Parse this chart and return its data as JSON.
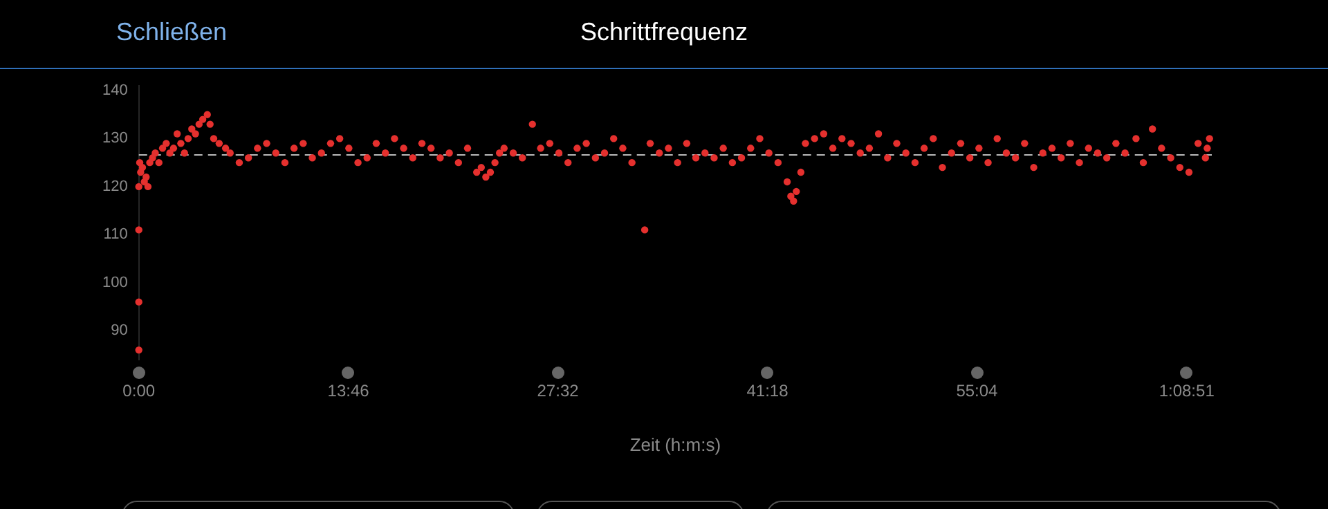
{
  "chart_data": {
    "type": "scatter",
    "title": "Schrittfrequenz",
    "xlabel": "Zeit (h:m:s)",
    "annotations": [
      "Schließen"
    ],
    "x": [
      0,
      0,
      0,
      0,
      0.06,
      0.12,
      0.24,
      0.36,
      0.48,
      0.6,
      0.72,
      0.9,
      1.08,
      1.32,
      1.56,
      1.8,
      2.04,
      2.28,
      2.52,
      2.76,
      3.0,
      3.24,
      3.48,
      3.72,
      3.96,
      4.2,
      4.5,
      4.68,
      4.92,
      5.28,
      5.7,
      6.0,
      6.6,
      7.2,
      7.8,
      8.4,
      9.0,
      9.6,
      10.2,
      10.8,
      11.4,
      12.0,
      12.6,
      13.2,
      13.8,
      14.4,
      15.0,
      15.6,
      16.2,
      16.8,
      17.4,
      18.0,
      18.6,
      19.2,
      19.8,
      20.4,
      21.0,
      21.6,
      22.2,
      22.5,
      22.8,
      23.1,
      23.4,
      23.7,
      24.0,
      24.6,
      25.2,
      25.86,
      26.4,
      27.0,
      27.6,
      28.2,
      28.8,
      29.4,
      30.0,
      30.6,
      31.2,
      31.8,
      32.4,
      33.24,
      33.6,
      34.2,
      34.8,
      35.4,
      36.0,
      36.6,
      37.2,
      37.8,
      38.4,
      39.0,
      39.6,
      40.2,
      40.8,
      41.4,
      42.0,
      42.6,
      42.84,
      43.02,
      43.2,
      43.5,
      43.8,
      44.4,
      45.0,
      45.6,
      46.2,
      46.8,
      47.4,
      48.0,
      48.6,
      49.2,
      49.8,
      50.4,
      51.0,
      51.6,
      52.2,
      52.8,
      53.4,
      54.0,
      54.6,
      55.2,
      55.8,
      56.4,
      57.0,
      57.6,
      58.2,
      58.8,
      59.4,
      60.0,
      60.6,
      61.2,
      61.8,
      62.4,
      63.0,
      63.6,
      64.2,
      64.8,
      65.52,
      66.0,
      66.6,
      67.2,
      67.8,
      68.4,
      69.0,
      69.6,
      70.08,
      70.2,
      70.35
    ],
    "series": [
      {
        "color": "#e5302e",
        "values": [
          86,
          96,
          111,
          120,
          125,
          123,
          124,
          121,
          122,
          120,
          125,
          126,
          127,
          125,
          128,
          129,
          127,
          128,
          131,
          129,
          127,
          130,
          132,
          131,
          133,
          134,
          135,
          133,
          130,
          129,
          128,
          127,
          125,
          126,
          128,
          129,
          127,
          125,
          128,
          129,
          126,
          127,
          129,
          130,
          128,
          125,
          126,
          129,
          127,
          130,
          128,
          126,
          129,
          128,
          126,
          127,
          125,
          128,
          123,
          124,
          122,
          123,
          125,
          127,
          128,
          127,
          126,
          133,
          128,
          129,
          127,
          125,
          128,
          129,
          126,
          127,
          130,
          128,
          125,
          111,
          129,
          127,
          128,
          125,
          129,
          126,
          127,
          126,
          128,
          125,
          126,
          128,
          130,
          127,
          125,
          121,
          118,
          117,
          119,
          123,
          129,
          130,
          131,
          128,
          130,
          129,
          127,
          128,
          131,
          126,
          129,
          127,
          125,
          128,
          130,
          124,
          127,
          129,
          126,
          128,
          125,
          130,
          127,
          126,
          129,
          124,
          127,
          128,
          126,
          129,
          125,
          128,
          127,
          126,
          129,
          127,
          130,
          125,
          132,
          128,
          126,
          124,
          123,
          129,
          126,
          128,
          130
        ]
      }
    ],
    "ylim": [
      84,
      141
    ],
    "yticks": [
      90,
      100,
      110,
      120,
      130,
      140
    ],
    "xlim": [
      0,
      70.5
    ],
    "xticks": [
      {
        "value": 0,
        "label": "0:00"
      },
      {
        "value": 13.767,
        "label": "13:46"
      },
      {
        "value": 27.533,
        "label": "27:32"
      },
      {
        "value": 41.3,
        "label": "41:18"
      },
      {
        "value": 55.067,
        "label": "55:04"
      },
      {
        "value": 68.85,
        "label": "1:08:51"
      }
    ],
    "ref_lines": [
      {
        "axis": "y",
        "value": 126.6,
        "color": "#bbbbbb",
        "line_style": "dashed"
      }
    ],
    "grid": false,
    "legend": false,
    "marker": "circle"
  }
}
